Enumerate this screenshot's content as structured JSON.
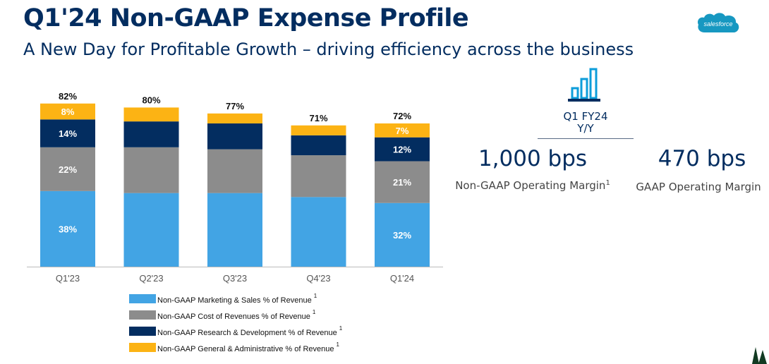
{
  "header": {
    "title": "Q1'24 Non-GAAP Expense Profile",
    "subtitle": "A New Day for Profitable Growth – driving efficiency across the business",
    "logo_text": "salesforce",
    "logo_color": "#1798c1"
  },
  "chart_data": {
    "type": "bar",
    "stacked": true,
    "categories": [
      "Q1'23",
      "Q2'23",
      "Q3'23",
      "Q4'23",
      "Q1'24"
    ],
    "ylim": [
      0,
      90
    ],
    "grid": false,
    "legend_position": "bottom",
    "series": [
      {
        "name": "Non-GAAP Marketing & Sales % of Revenue",
        "footnote": "1",
        "color": "#42a4e4",
        "values": [
          38,
          37,
          37,
          35,
          32
        ],
        "labels": [
          "38%",
          "",
          "",
          "",
          "32%"
        ]
      },
      {
        "name": "Non-GAAP Cost of Revenues % of Revenue",
        "footnote": "1",
        "color": "#8c8c8c",
        "values": [
          22,
          23,
          22,
          21,
          21
        ],
        "labels": [
          "22%",
          "",
          "",
          "",
          "21%"
        ]
      },
      {
        "name": "Non-GAAP Research & Development % of Revenue",
        "footnote": "1",
        "color": "#032d60",
        "values": [
          14,
          13,
          13,
          10,
          12
        ],
        "labels": [
          "14%",
          "",
          "",
          "",
          "12%"
        ]
      },
      {
        "name": "Non-GAAP General & Administrative % of Revenue",
        "footnote": "1",
        "color": "#fcb314",
        "values": [
          8,
          7,
          5,
          5,
          7
        ],
        "labels": [
          "8%",
          "",
          "",
          "",
          "7%"
        ]
      }
    ],
    "totals": [
      "82%",
      "80%",
      "77%",
      "71%",
      "72%"
    ]
  },
  "metrics": {
    "period_line1": "Q1 FY24",
    "period_line2": "Y/Y",
    "items": [
      {
        "value": "1,000 bps",
        "label": "Non-GAAP Operating Margin",
        "footnote": "1"
      },
      {
        "value": "470 bps",
        "label": "GAAP Operating Margin",
        "footnote": ""
      }
    ],
    "icon": "bar-chart-icon",
    "accent_color": "#0d9dda"
  }
}
